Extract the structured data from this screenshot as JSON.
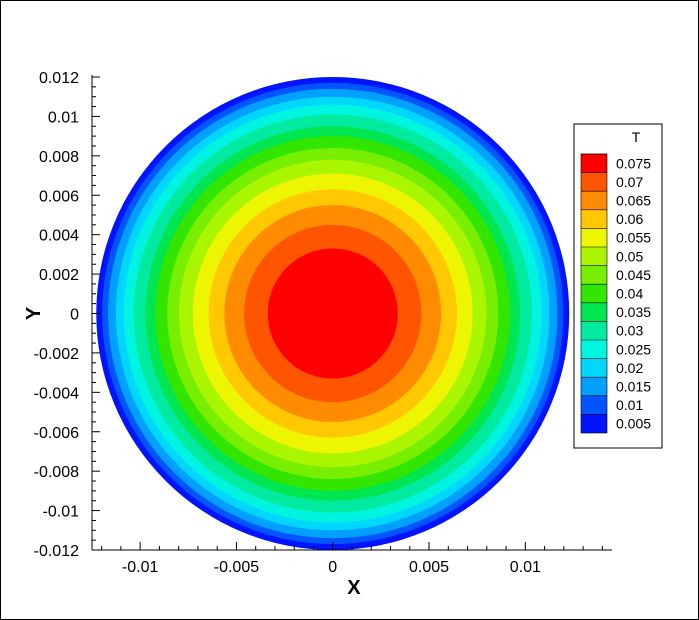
{
  "chart_data": {
    "type": "heatmap",
    "subtype": "filled-contour",
    "variable": "T",
    "xlabel": "X",
    "ylabel": "Y",
    "xlim": [
      -0.0125,
      0.0145
    ],
    "ylim": [
      -0.012,
      0.012
    ],
    "domain": {
      "shape": "circle",
      "center": [
        0,
        0
      ],
      "radius": 0.012
    },
    "x_ticks": [
      {
        "value": -0.01,
        "label": "-0.01"
      },
      {
        "value": -0.005,
        "label": "-0.005"
      },
      {
        "value": 0,
        "label": "0"
      },
      {
        "value": 0.005,
        "label": "0.005"
      },
      {
        "value": 0.01,
        "label": "0.01"
      }
    ],
    "y_ticks": [
      {
        "value": 0.012,
        "label": "0.012"
      },
      {
        "value": 0.01,
        "label": "0.01"
      },
      {
        "value": 0.008,
        "label": "0.008"
      },
      {
        "value": 0.006,
        "label": "0.006"
      },
      {
        "value": 0.004,
        "label": "0.004"
      },
      {
        "value": 0.002,
        "label": "0.002"
      },
      {
        "value": 0,
        "label": "0"
      },
      {
        "value": -0.002,
        "label": "-0.002"
      },
      {
        "value": -0.004,
        "label": "-0.004"
      },
      {
        "value": -0.006,
        "label": "-0.006"
      },
      {
        "value": -0.008,
        "label": "-0.008"
      },
      {
        "value": -0.01,
        "label": "-0.01"
      },
      {
        "value": -0.012,
        "label": "-0.012"
      }
    ],
    "levels": [
      {
        "value": 0.075,
        "label": "0.075",
        "color": "#ff0000",
        "outer_radius": 0.0033
      },
      {
        "value": 0.07,
        "label": "0.07",
        "color": "#ff5500",
        "outer_radius": 0.0045
      },
      {
        "value": 0.065,
        "label": "0.065",
        "color": "#ff8c00",
        "outer_radius": 0.0055
      },
      {
        "value": 0.06,
        "label": "0.06",
        "color": "#ffc800",
        "outer_radius": 0.0063
      },
      {
        "value": 0.055,
        "label": "0.055",
        "color": "#eef500",
        "outer_radius": 0.0071
      },
      {
        "value": 0.05,
        "label": "0.05",
        "color": "#aaf500",
        "outer_radius": 0.0078
      },
      {
        "value": 0.045,
        "label": "0.045",
        "color": "#78ee00",
        "outer_radius": 0.0084
      },
      {
        "value": 0.04,
        "label": "0.04",
        "color": "#32e600",
        "outer_radius": 0.009
      },
      {
        "value": 0.035,
        "label": "0.035",
        "color": "#00e650",
        "outer_radius": 0.0095
      },
      {
        "value": 0.03,
        "label": "0.03",
        "color": "#00eaa0",
        "outer_radius": 0.0101
      },
      {
        "value": 0.025,
        "label": "0.025",
        "color": "#00f5e0",
        "outer_radius": 0.0106
      },
      {
        "value": 0.02,
        "label": "0.02",
        "color": "#00d7ff",
        "outer_radius": 0.011
      },
      {
        "value": 0.015,
        "label": "0.015",
        "color": "#00a0ff",
        "outer_radius": 0.0114
      },
      {
        "value": 0.01,
        "label": "0.01",
        "color": "#0055ff",
        "outer_radius": 0.0117
      },
      {
        "value": 0.005,
        "label": "0.005",
        "color": "#0014ff",
        "outer_radius": 0.012
      }
    ],
    "grid": false,
    "legend_position": "right"
  }
}
